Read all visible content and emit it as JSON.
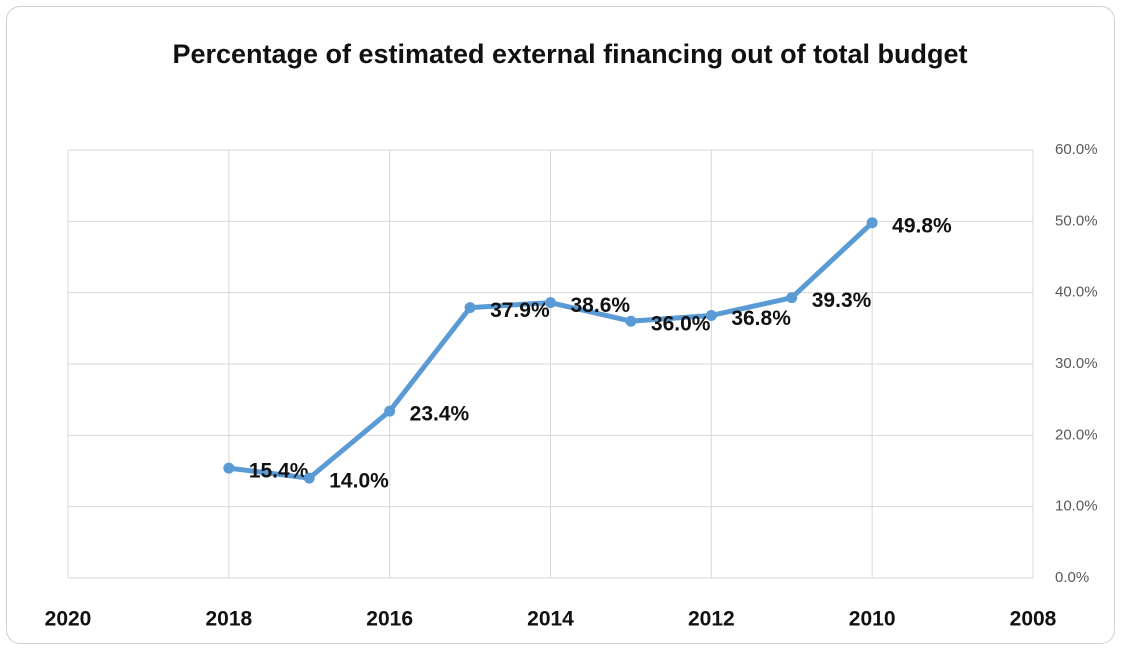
{
  "chart_data": {
    "type": "line",
    "title": "Percentage of estimated external financing out of total budget",
    "x": [
      2018,
      2017,
      2016,
      2015,
      2014,
      2013,
      2012,
      2011,
      2010
    ],
    "values": [
      15.4,
      14.0,
      23.4,
      37.9,
      38.6,
      36.0,
      36.8,
      39.3,
      49.8
    ],
    "value_labels": [
      "15.4%",
      "14.0%",
      "23.4%",
      "37.9%",
      "38.6%",
      "36.0%",
      "36.8%",
      "39.3%",
      "49.8%"
    ],
    "color": "#5b9bd5",
    "xlim": [
      2020,
      2008
    ],
    "xticks": [
      2020,
      2018,
      2016,
      2014,
      2012,
      2010,
      2008
    ],
    "ylim": [
      0,
      60
    ],
    "yticks": [
      {
        "value": 0,
        "label": "0.0%"
      },
      {
        "value": 10,
        "label": "10.0%"
      },
      {
        "value": 20,
        "label": "20.0%"
      },
      {
        "value": 30,
        "label": "30.0%"
      },
      {
        "value": 40,
        "label": "40.0%"
      },
      {
        "value": 50,
        "label": "50.0%"
      },
      {
        "value": 60,
        "label": "60.0%"
      }
    ],
    "grid": true,
    "y_axis_side": "right"
  }
}
